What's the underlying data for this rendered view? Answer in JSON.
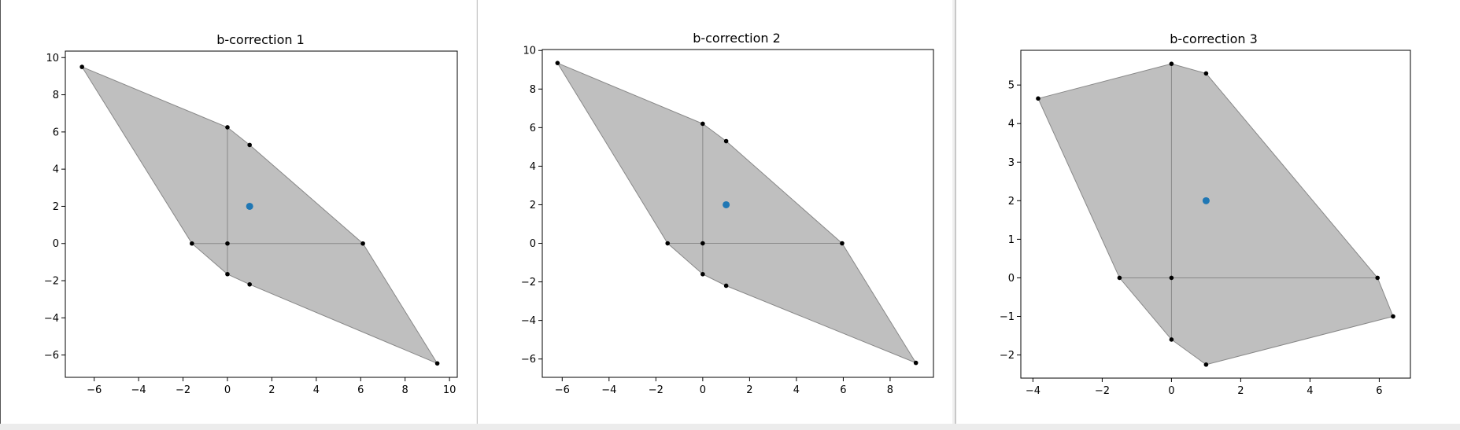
{
  "colors": {
    "fill": "#bfbfbf",
    "edge": "#888888",
    "vertex": "#000000",
    "center": "#1f77b4"
  },
  "chart_data": [
    {
      "type": "scatter",
      "title": "b-correction 1",
      "xlim": [
        -7.3,
        10.35
      ],
      "ylim": [
        -7.2,
        10.35
      ],
      "xticks": [
        -6,
        -4,
        -2,
        0,
        2,
        4,
        6,
        8,
        10
      ],
      "yticks": [
        -6,
        -4,
        -2,
        0,
        2,
        4,
        6,
        8,
        10
      ],
      "polygon": [
        [
          -6.55,
          9.5
        ],
        [
          0,
          6.25
        ],
        [
          1,
          5.3
        ],
        [
          6.1,
          0
        ],
        [
          9.45,
          -6.45
        ],
        [
          1,
          -2.2
        ],
        [
          0,
          -1.65
        ],
        [
          -1.6,
          0
        ]
      ],
      "segments": [
        [
          [
            0,
            6.25
          ],
          [
            0,
            -1.65
          ]
        ],
        [
          [
            -1.6,
            0
          ],
          [
            6.1,
            0
          ]
        ]
      ],
      "vertices": [
        [
          -6.55,
          9.5
        ],
        [
          0,
          6.25
        ],
        [
          1,
          5.3
        ],
        [
          6.1,
          0
        ],
        [
          9.45,
          -6.45
        ],
        [
          1,
          -2.2
        ],
        [
          0,
          -1.65
        ],
        [
          -1.6,
          0
        ],
        [
          0,
          0
        ]
      ],
      "center": [
        1,
        2
      ]
    },
    {
      "type": "scatter",
      "title": "b-correction 2",
      "xlim": [
        -6.85,
        9.85
      ],
      "ylim": [
        -6.95,
        10.05
      ],
      "xticks": [
        -6,
        -4,
        -2,
        0,
        2,
        4,
        6,
        8
      ],
      "yticks": [
        -6,
        -4,
        -2,
        0,
        2,
        4,
        6,
        8,
        10
      ],
      "polygon": [
        [
          -6.2,
          9.35
        ],
        [
          0,
          6.2
        ],
        [
          1,
          5.3
        ],
        [
          5.95,
          0
        ],
        [
          9.1,
          -6.2
        ],
        [
          1,
          -2.2
        ],
        [
          0,
          -1.6
        ],
        [
          -1.5,
          0
        ]
      ],
      "segments": [
        [
          [
            0,
            6.2
          ],
          [
            0,
            -1.6
          ]
        ],
        [
          [
            -1.5,
            0
          ],
          [
            5.95,
            0
          ]
        ]
      ],
      "vertices": [
        [
          -6.2,
          9.35
        ],
        [
          0,
          6.2
        ],
        [
          1,
          5.3
        ],
        [
          5.95,
          0
        ],
        [
          9.1,
          -6.2
        ],
        [
          1,
          -2.2
        ],
        [
          0,
          -1.6
        ],
        [
          -1.5,
          0
        ],
        [
          0,
          0
        ]
      ],
      "center": [
        1,
        2
      ]
    },
    {
      "type": "scatter",
      "title": "b-correction 3",
      "xlim": [
        -4.35,
        6.9
      ],
      "ylim": [
        -2.6,
        5.9
      ],
      "xticks": [
        -4,
        -2,
        0,
        2,
        4,
        6
      ],
      "yticks": [
        -2,
        -1,
        0,
        1,
        2,
        3,
        4,
        5
      ],
      "polygon": [
        [
          -3.85,
          4.65
        ],
        [
          0,
          5.55
        ],
        [
          1,
          5.3
        ],
        [
          5.95,
          0
        ],
        [
          6.4,
          -1
        ],
        [
          1,
          -2.25
        ],
        [
          0,
          -1.6
        ],
        [
          -1.5,
          0
        ]
      ],
      "segments": [
        [
          [
            0,
            5.55
          ],
          [
            0,
            -1.6
          ]
        ],
        [
          [
            -1.5,
            0
          ],
          [
            5.95,
            0
          ]
        ]
      ],
      "vertices": [
        [
          -3.85,
          4.65
        ],
        [
          0,
          5.55
        ],
        [
          1,
          5.3
        ],
        [
          5.95,
          0
        ],
        [
          6.4,
          -1
        ],
        [
          1,
          -2.25
        ],
        [
          0,
          -1.6
        ],
        [
          -1.5,
          0
        ],
        [
          0,
          0
        ]
      ],
      "center": [
        1,
        2
      ]
    }
  ]
}
